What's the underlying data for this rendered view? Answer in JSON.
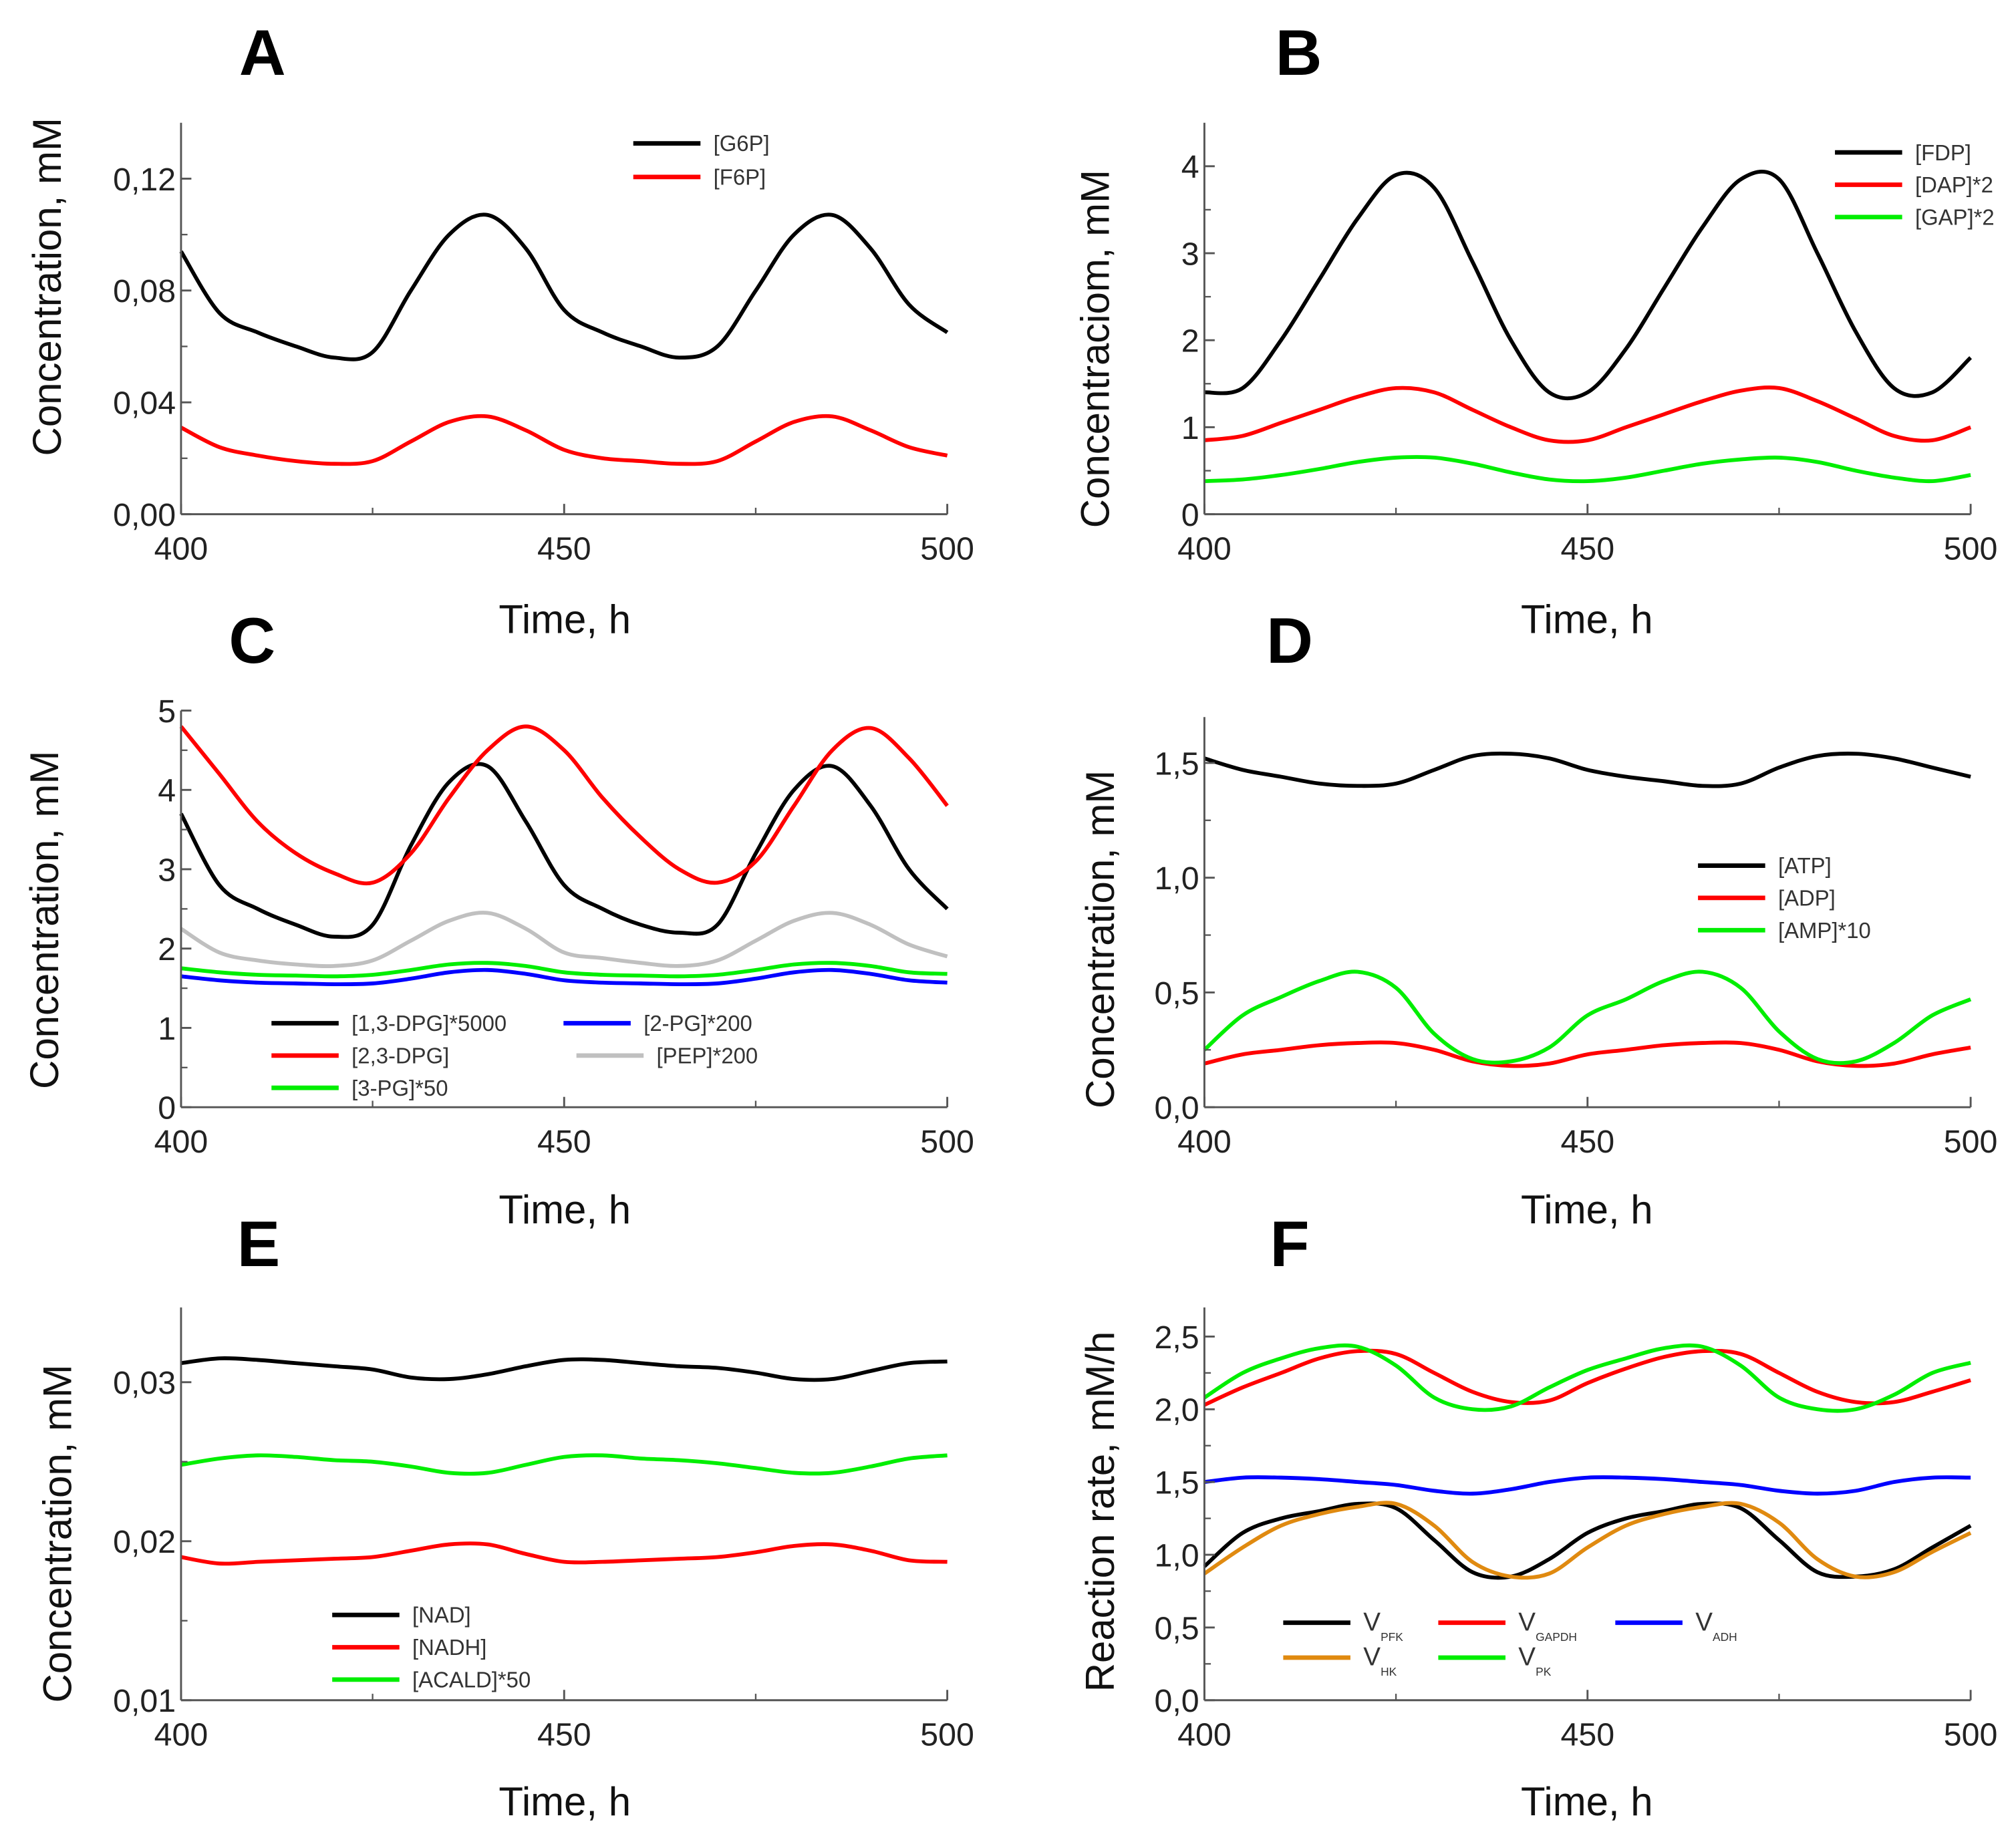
{
  "chart_data": [
    {
      "panel": "A",
      "type": "line",
      "xlabel": "Time,   h",
      "ylabel": "Concentration,  mM",
      "xlim": [
        400,
        500
      ],
      "ylim": [
        0,
        0.14
      ],
      "xticks": [
        400,
        450,
        500
      ],
      "xtick_labels": [
        "400",
        "450",
        "500"
      ],
      "yticks": [
        0,
        0.04,
        0.08,
        0.12
      ],
      "ytick_labels": [
        "0,00",
        "0,04",
        "0,08",
        "0,12"
      ],
      "legend": "top-center",
      "grid": false,
      "x": [
        400,
        405,
        410,
        415,
        420,
        425,
        430,
        435,
        440,
        445,
        450,
        455,
        460,
        465,
        470,
        475,
        480,
        485,
        490,
        495,
        500
      ],
      "series": [
        {
          "name": "[G6P]",
          "color": "#000000",
          "values": [
            0.094,
            0.072,
            0.065,
            0.06,
            0.056,
            0.058,
            0.08,
            0.1,
            0.107,
            0.095,
            0.073,
            0.065,
            0.06,
            0.056,
            0.06,
            0.08,
            0.1,
            0.107,
            0.095,
            0.075,
            0.065
          ]
        },
        {
          "name": "[F6P]",
          "color": "#ff0000",
          "values": [
            0.031,
            0.024,
            0.021,
            0.019,
            0.018,
            0.019,
            0.026,
            0.033,
            0.035,
            0.03,
            0.023,
            0.02,
            0.019,
            0.018,
            0.019,
            0.026,
            0.033,
            0.035,
            0.03,
            0.024,
            0.021
          ]
        }
      ]
    },
    {
      "panel": "B",
      "type": "line",
      "xlabel": "Time,   h",
      "ylabel": "Concentraciom,  mM",
      "xlim": [
        400,
        500
      ],
      "ylim": [
        0,
        4.5
      ],
      "xticks": [
        400,
        450,
        500
      ],
      "xtick_labels": [
        "400",
        "450",
        "500"
      ],
      "yticks": [
        0,
        1,
        2,
        3,
        4
      ],
      "ytick_labels": [
        "0",
        "1",
        "2",
        "3",
        "4"
      ],
      "legend": "top-right",
      "grid": false,
      "x": [
        400,
        405,
        410,
        415,
        420,
        425,
        430,
        435,
        440,
        445,
        450,
        455,
        460,
        465,
        470,
        475,
        480,
        485,
        490,
        495,
        500
      ],
      "series": [
        {
          "name": "[FDP]",
          "color": "#000000",
          "values": [
            1.4,
            1.45,
            2.0,
            2.7,
            3.4,
            3.9,
            3.75,
            2.9,
            2.0,
            1.4,
            1.4,
            1.9,
            2.6,
            3.3,
            3.85,
            3.85,
            3.0,
            2.1,
            1.45,
            1.4,
            1.8
          ]
        },
        {
          "name": "[DAP]*2",
          "color": "#ff0000",
          "values": [
            0.85,
            0.9,
            1.05,
            1.2,
            1.35,
            1.45,
            1.4,
            1.2,
            1.0,
            0.85,
            0.85,
            1.0,
            1.15,
            1.3,
            1.42,
            1.45,
            1.3,
            1.1,
            0.9,
            0.85,
            1.0
          ]
        },
        {
          "name": "[GAP]*2",
          "color": "#00ee00",
          "values": [
            0.38,
            0.4,
            0.45,
            0.52,
            0.6,
            0.65,
            0.65,
            0.58,
            0.48,
            0.4,
            0.38,
            0.42,
            0.5,
            0.58,
            0.63,
            0.65,
            0.6,
            0.5,
            0.42,
            0.38,
            0.45
          ]
        }
      ]
    },
    {
      "panel": "C",
      "type": "line",
      "xlabel": "Time,   h",
      "ylabel": "Concentration,  mM",
      "xlim": [
        400,
        500
      ],
      "ylim": [
        0,
        5
      ],
      "xticks": [
        400,
        450,
        500
      ],
      "xtick_labels": [
        "400",
        "450",
        "500"
      ],
      "yticks": [
        0,
        1,
        2,
        3,
        4,
        5
      ],
      "ytick_labels": [
        "0",
        "1",
        "2",
        "3",
        "4",
        "5"
      ],
      "legend": "bottom-left",
      "grid": false,
      "x": [
        400,
        405,
        410,
        415,
        420,
        425,
        430,
        435,
        440,
        445,
        450,
        455,
        460,
        465,
        470,
        475,
        480,
        485,
        490,
        495,
        500
      ],
      "series": [
        {
          "name": "[1,3-DPG]*5000",
          "color": "#000000",
          "values": [
            3.7,
            2.8,
            2.5,
            2.3,
            2.15,
            2.3,
            3.3,
            4.1,
            4.3,
            3.6,
            2.8,
            2.5,
            2.3,
            2.2,
            2.3,
            3.2,
            4.0,
            4.3,
            3.8,
            3.0,
            2.5
          ]
        },
        {
          "name": "[2,3-DPG]",
          "color": "#ff0000",
          "values": [
            4.8,
            4.2,
            3.6,
            3.2,
            2.95,
            2.83,
            3.2,
            3.9,
            4.5,
            4.8,
            4.5,
            3.9,
            3.4,
            3.0,
            2.83,
            3.1,
            3.8,
            4.5,
            4.78,
            4.4,
            3.8
          ]
        },
        {
          "name": "[3-PG]*50",
          "color": "#00ee00",
          "values": [
            1.75,
            1.7,
            1.67,
            1.66,
            1.65,
            1.67,
            1.73,
            1.8,
            1.82,
            1.78,
            1.7,
            1.67,
            1.66,
            1.65,
            1.67,
            1.73,
            1.8,
            1.82,
            1.78,
            1.7,
            1.68
          ]
        },
        {
          "name": "[2-PG]*200",
          "color": "#0000ff",
          "values": [
            1.65,
            1.6,
            1.57,
            1.56,
            1.55,
            1.56,
            1.62,
            1.7,
            1.73,
            1.68,
            1.6,
            1.57,
            1.56,
            1.55,
            1.56,
            1.62,
            1.7,
            1.73,
            1.68,
            1.6,
            1.57
          ]
        },
        {
          "name": "[PEP]*200",
          "color": "#c0c0c0",
          "values": [
            2.25,
            1.95,
            1.85,
            1.8,
            1.78,
            1.85,
            2.1,
            2.35,
            2.45,
            2.25,
            1.95,
            1.88,
            1.82,
            1.78,
            1.85,
            2.1,
            2.35,
            2.45,
            2.3,
            2.05,
            1.9
          ]
        }
      ]
    },
    {
      "panel": "D",
      "type": "line",
      "xlabel": "Time,   h",
      "ylabel": "Concentration,  mM",
      "xlim": [
        400,
        500
      ],
      "ylim": [
        0,
        1.7
      ],
      "xticks": [
        400,
        450,
        500
      ],
      "xtick_labels": [
        "400",
        "450",
        "500"
      ],
      "yticks": [
        0,
        0.5,
        1.0,
        1.5
      ],
      "ytick_labels": [
        "0,0",
        "0,5",
        "1,0",
        "1,5"
      ],
      "legend": "center-right",
      "grid": false,
      "x": [
        400,
        405,
        410,
        415,
        420,
        425,
        430,
        435,
        440,
        445,
        450,
        455,
        460,
        465,
        470,
        475,
        480,
        485,
        490,
        495,
        500
      ],
      "series": [
        {
          "name": "[ATP]",
          "color": "#000000",
          "values": [
            1.52,
            1.47,
            1.44,
            1.41,
            1.4,
            1.41,
            1.47,
            1.53,
            1.54,
            1.52,
            1.47,
            1.44,
            1.42,
            1.4,
            1.41,
            1.48,
            1.53,
            1.54,
            1.52,
            1.48,
            1.44
          ]
        },
        {
          "name": "[ADP]",
          "color": "#ff0000",
          "values": [
            0.19,
            0.23,
            0.25,
            0.27,
            0.28,
            0.28,
            0.25,
            0.2,
            0.18,
            0.19,
            0.23,
            0.25,
            0.27,
            0.28,
            0.28,
            0.25,
            0.2,
            0.18,
            0.19,
            0.23,
            0.26
          ]
        },
        {
          "name": "[AMP]*10",
          "color": "#00ee00",
          "values": [
            0.25,
            0.4,
            0.48,
            0.55,
            0.59,
            0.52,
            0.32,
            0.21,
            0.2,
            0.26,
            0.4,
            0.47,
            0.55,
            0.59,
            0.52,
            0.33,
            0.21,
            0.2,
            0.28,
            0.4,
            0.47
          ]
        }
      ]
    },
    {
      "panel": "E",
      "type": "line",
      "xlabel": "Time,   h",
      "ylabel": "Concentration,  mM",
      "xlim": [
        400,
        500
      ],
      "ylim": [
        0.01,
        0.0347
      ],
      "xticks": [
        400,
        450,
        500
      ],
      "xtick_labels": [
        "400",
        "450",
        "500"
      ],
      "yticks": [
        0.01,
        0.02,
        0.03
      ],
      "ytick_labels": [
        "0,01",
        "0,02",
        "0,03"
      ],
      "legend": "bottom-left",
      "grid": false,
      "x": [
        400,
        405,
        410,
        415,
        420,
        425,
        430,
        435,
        440,
        445,
        450,
        455,
        460,
        465,
        470,
        475,
        480,
        485,
        490,
        495,
        500
      ],
      "series": [
        {
          "name": "[NAD]",
          "color": "#000000",
          "values": [
            0.0312,
            0.0315,
            0.0314,
            0.0312,
            0.031,
            0.0308,
            0.0303,
            0.0302,
            0.0305,
            0.031,
            0.0314,
            0.0314,
            0.0312,
            0.031,
            0.0309,
            0.0306,
            0.0302,
            0.0302,
            0.0307,
            0.0312,
            0.0313
          ]
        },
        {
          "name": "[NADH]",
          "color": "#ff0000",
          "values": [
            0.019,
            0.0186,
            0.0187,
            0.0188,
            0.0189,
            0.019,
            0.0194,
            0.0198,
            0.0198,
            0.0192,
            0.0187,
            0.0187,
            0.0188,
            0.0189,
            0.019,
            0.0193,
            0.0197,
            0.0198,
            0.0194,
            0.0188,
            0.0187
          ]
        },
        {
          "name": "[ACALD]*50",
          "color": "#00ee00",
          "values": [
            0.0248,
            0.0252,
            0.0254,
            0.0253,
            0.0251,
            0.025,
            0.0247,
            0.0243,
            0.0243,
            0.0248,
            0.0253,
            0.0254,
            0.0252,
            0.0251,
            0.0249,
            0.0246,
            0.0243,
            0.0243,
            0.0247,
            0.0252,
            0.0254
          ]
        }
      ]
    },
    {
      "panel": "F",
      "type": "line",
      "xlabel": "Time,   h",
      "ylabel": "Reaction rate,  mM/h",
      "xlim": [
        400,
        500
      ],
      "ylim": [
        0,
        2.7
      ],
      "xticks": [
        400,
        450,
        500
      ],
      "xtick_labels": [
        "400",
        "450",
        "500"
      ],
      "yticks": [
        0,
        0.5,
        1.0,
        1.5,
        2.0,
        2.5
      ],
      "ytick_labels": [
        "0,0",
        "0,5",
        "1,0",
        "1,5",
        "2,0",
        "2,5"
      ],
      "legend": "bottom-left",
      "grid": false,
      "x": [
        400,
        405,
        410,
        415,
        420,
        425,
        430,
        435,
        440,
        445,
        450,
        455,
        460,
        465,
        470,
        475,
        480,
        485,
        490,
        495,
        500
      ],
      "series": [
        {
          "name": "V",
          "sub": "PFK",
          "color": "#000000",
          "values": [
            0.92,
            1.15,
            1.25,
            1.3,
            1.35,
            1.32,
            1.1,
            0.88,
            0.85,
            0.97,
            1.15,
            1.25,
            1.3,
            1.35,
            1.32,
            1.1,
            0.88,
            0.85,
            0.9,
            1.05,
            1.2
          ]
        },
        {
          "name": "V",
          "sub": "HK",
          "color": "#e08a10",
          "values": [
            0.87,
            1.05,
            1.2,
            1.28,
            1.33,
            1.35,
            1.2,
            0.95,
            0.85,
            0.87,
            1.05,
            1.2,
            1.28,
            1.33,
            1.35,
            1.22,
            0.97,
            0.85,
            0.88,
            1.02,
            1.15
          ]
        },
        {
          "name": "V",
          "sub": "GAPDH",
          "color": "#ff0000",
          "values": [
            2.03,
            2.15,
            2.25,
            2.35,
            2.4,
            2.38,
            2.25,
            2.12,
            2.05,
            2.06,
            2.18,
            2.28,
            2.36,
            2.4,
            2.38,
            2.25,
            2.12,
            2.05,
            2.05,
            2.12,
            2.2
          ]
        },
        {
          "name": "V",
          "sub": "PK",
          "color": "#00ee00",
          "values": [
            2.08,
            2.25,
            2.35,
            2.42,
            2.43,
            2.3,
            2.08,
            2.0,
            2.02,
            2.15,
            2.27,
            2.35,
            2.42,
            2.43,
            2.3,
            2.08,
            2.0,
            2.0,
            2.1,
            2.25,
            2.32
          ]
        },
        {
          "name": "V",
          "sub": "ADH",
          "color": "#0000ff",
          "values": [
            1.5,
            1.53,
            1.53,
            1.52,
            1.5,
            1.48,
            1.44,
            1.42,
            1.45,
            1.5,
            1.53,
            1.53,
            1.52,
            1.5,
            1.48,
            1.44,
            1.42,
            1.44,
            1.5,
            1.53,
            1.53
          ]
        }
      ]
    }
  ]
}
